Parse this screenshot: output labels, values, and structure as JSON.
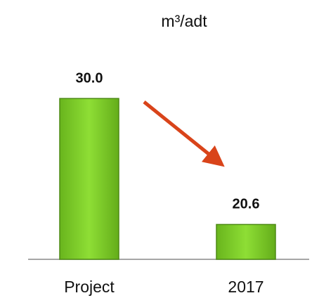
{
  "chart_data": {
    "type": "bar",
    "title": "m³/adt",
    "categories": [
      "Project",
      "2017"
    ],
    "values": [
      30.0,
      20.6
    ],
    "value_labels": [
      "30.0",
      "20.6"
    ],
    "color": "#7fcf2a",
    "ylim": [
      18,
      32
    ]
  }
}
